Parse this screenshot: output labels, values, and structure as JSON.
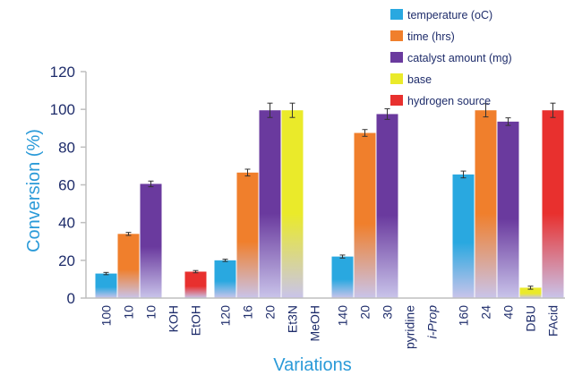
{
  "chart_data": {
    "type": "bar",
    "title": "",
    "xlabel": "Variations",
    "ylabel": "Conversion (%)",
    "ylim": [
      0,
      120
    ],
    "yticks": [
      0,
      20,
      40,
      60,
      80,
      100,
      120
    ],
    "grid": false,
    "legend_position": "top-right",
    "series": [
      {
        "name": "temperature (oC)",
        "color": "#29a8e0"
      },
      {
        "name": "time (hrs)",
        "color": "#f07f2c"
      },
      {
        "name": "catalyst amount (mg)",
        "color": "#6a3a9e"
      },
      {
        "name": "base",
        "color": "#eaea2a"
      },
      {
        "name": "hydrogen source",
        "color": "#e8302e"
      }
    ],
    "groups": [
      {
        "bars": [
          {
            "label": "100",
            "series": "temperature (oC)",
            "value": 13,
            "error": 0.6
          },
          {
            "label": "10",
            "series": "time (hrs)",
            "value": 34,
            "error": 0.8
          },
          {
            "label": "10",
            "series": "catalyst amount (mg)",
            "value": 60.5,
            "error": 1.5
          },
          {
            "label": "KOH",
            "series": "base",
            "value": 0,
            "error": null
          },
          {
            "label": "EtOH",
            "series": "hydrogen source",
            "value": 14,
            "error": 0.6
          }
        ]
      },
      {
        "bars": [
          {
            "label": "120",
            "series": "temperature (oC)",
            "value": 20,
            "error": 0.6
          },
          {
            "label": "16",
            "series": "time (hrs)",
            "value": 66.5,
            "error": 1.8
          },
          {
            "label": "20",
            "series": "catalyst amount (mg)",
            "value": 99.5,
            "error": 3.8
          },
          {
            "label": "Et3N",
            "series": "base",
            "value": 99.5,
            "error": 3.8
          },
          {
            "label": "MeOH",
            "series": "hydrogen source",
            "value": 0,
            "error": null
          }
        ]
      },
      {
        "bars": [
          {
            "label": "140",
            "series": "temperature (oC)",
            "value": 22,
            "error": 0.8
          },
          {
            "label": "20",
            "series": "time (hrs)",
            "value": 87.5,
            "error": 1.8
          },
          {
            "label": "30",
            "series": "catalyst amount (mg)",
            "value": 97.5,
            "error": 2.8
          },
          {
            "label": "pyridine",
            "series": "base",
            "value": 0,
            "error": null
          },
          {
            "label": "i-Prop",
            "series": "hydrogen source",
            "value": 0,
            "error": null
          }
        ]
      },
      {
        "bars": [
          {
            "label": "160",
            "series": "temperature (oC)",
            "value": 65.5,
            "error": 1.8
          },
          {
            "label": "24",
            "series": "time (hrs)",
            "value": 99.5,
            "error": 3.5
          },
          {
            "label": "40",
            "series": "catalyst amount (mg)",
            "value": 93.5,
            "error": 2.0
          },
          {
            "label": "DBU",
            "series": "base",
            "value": 5.5,
            "error": 0.8
          },
          {
            "label": "FAcid",
            "series": "hydrogen source",
            "value": 99.5,
            "error": 3.8
          }
        ]
      }
    ]
  }
}
